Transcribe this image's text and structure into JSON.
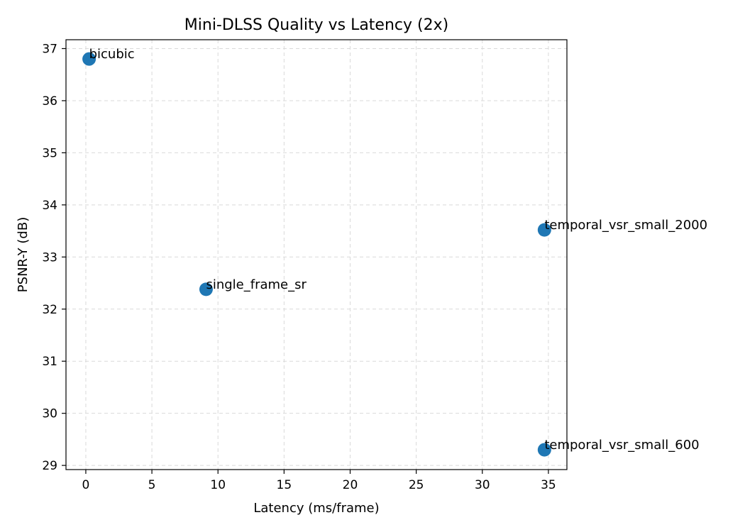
{
  "chart_data": {
    "type": "scatter",
    "title": "Mini-DLSS Quality vs Latency (2x)",
    "xlabel": "Latency (ms/frame)",
    "ylabel": "PSNR-Y (dB)",
    "xlim": [
      -1.5,
      36.4
    ],
    "ylim": [
      28.92,
      37.17
    ],
    "xticks": [
      0,
      5,
      10,
      15,
      20,
      25,
      30,
      35
    ],
    "yticks": [
      29,
      30,
      31,
      32,
      33,
      34,
      35,
      36,
      37
    ],
    "grid": true,
    "point_color": "#1f77b4",
    "points": [
      {
        "label": "bicubic",
        "x": 0.25,
        "y": 36.8
      },
      {
        "label": "single_frame_sr",
        "x": 9.1,
        "y": 32.38
      },
      {
        "label": "temporal_vsr_small_2000",
        "x": 34.7,
        "y": 33.52
      },
      {
        "label": "temporal_vsr_small_600",
        "x": 34.7,
        "y": 29.3
      }
    ]
  }
}
